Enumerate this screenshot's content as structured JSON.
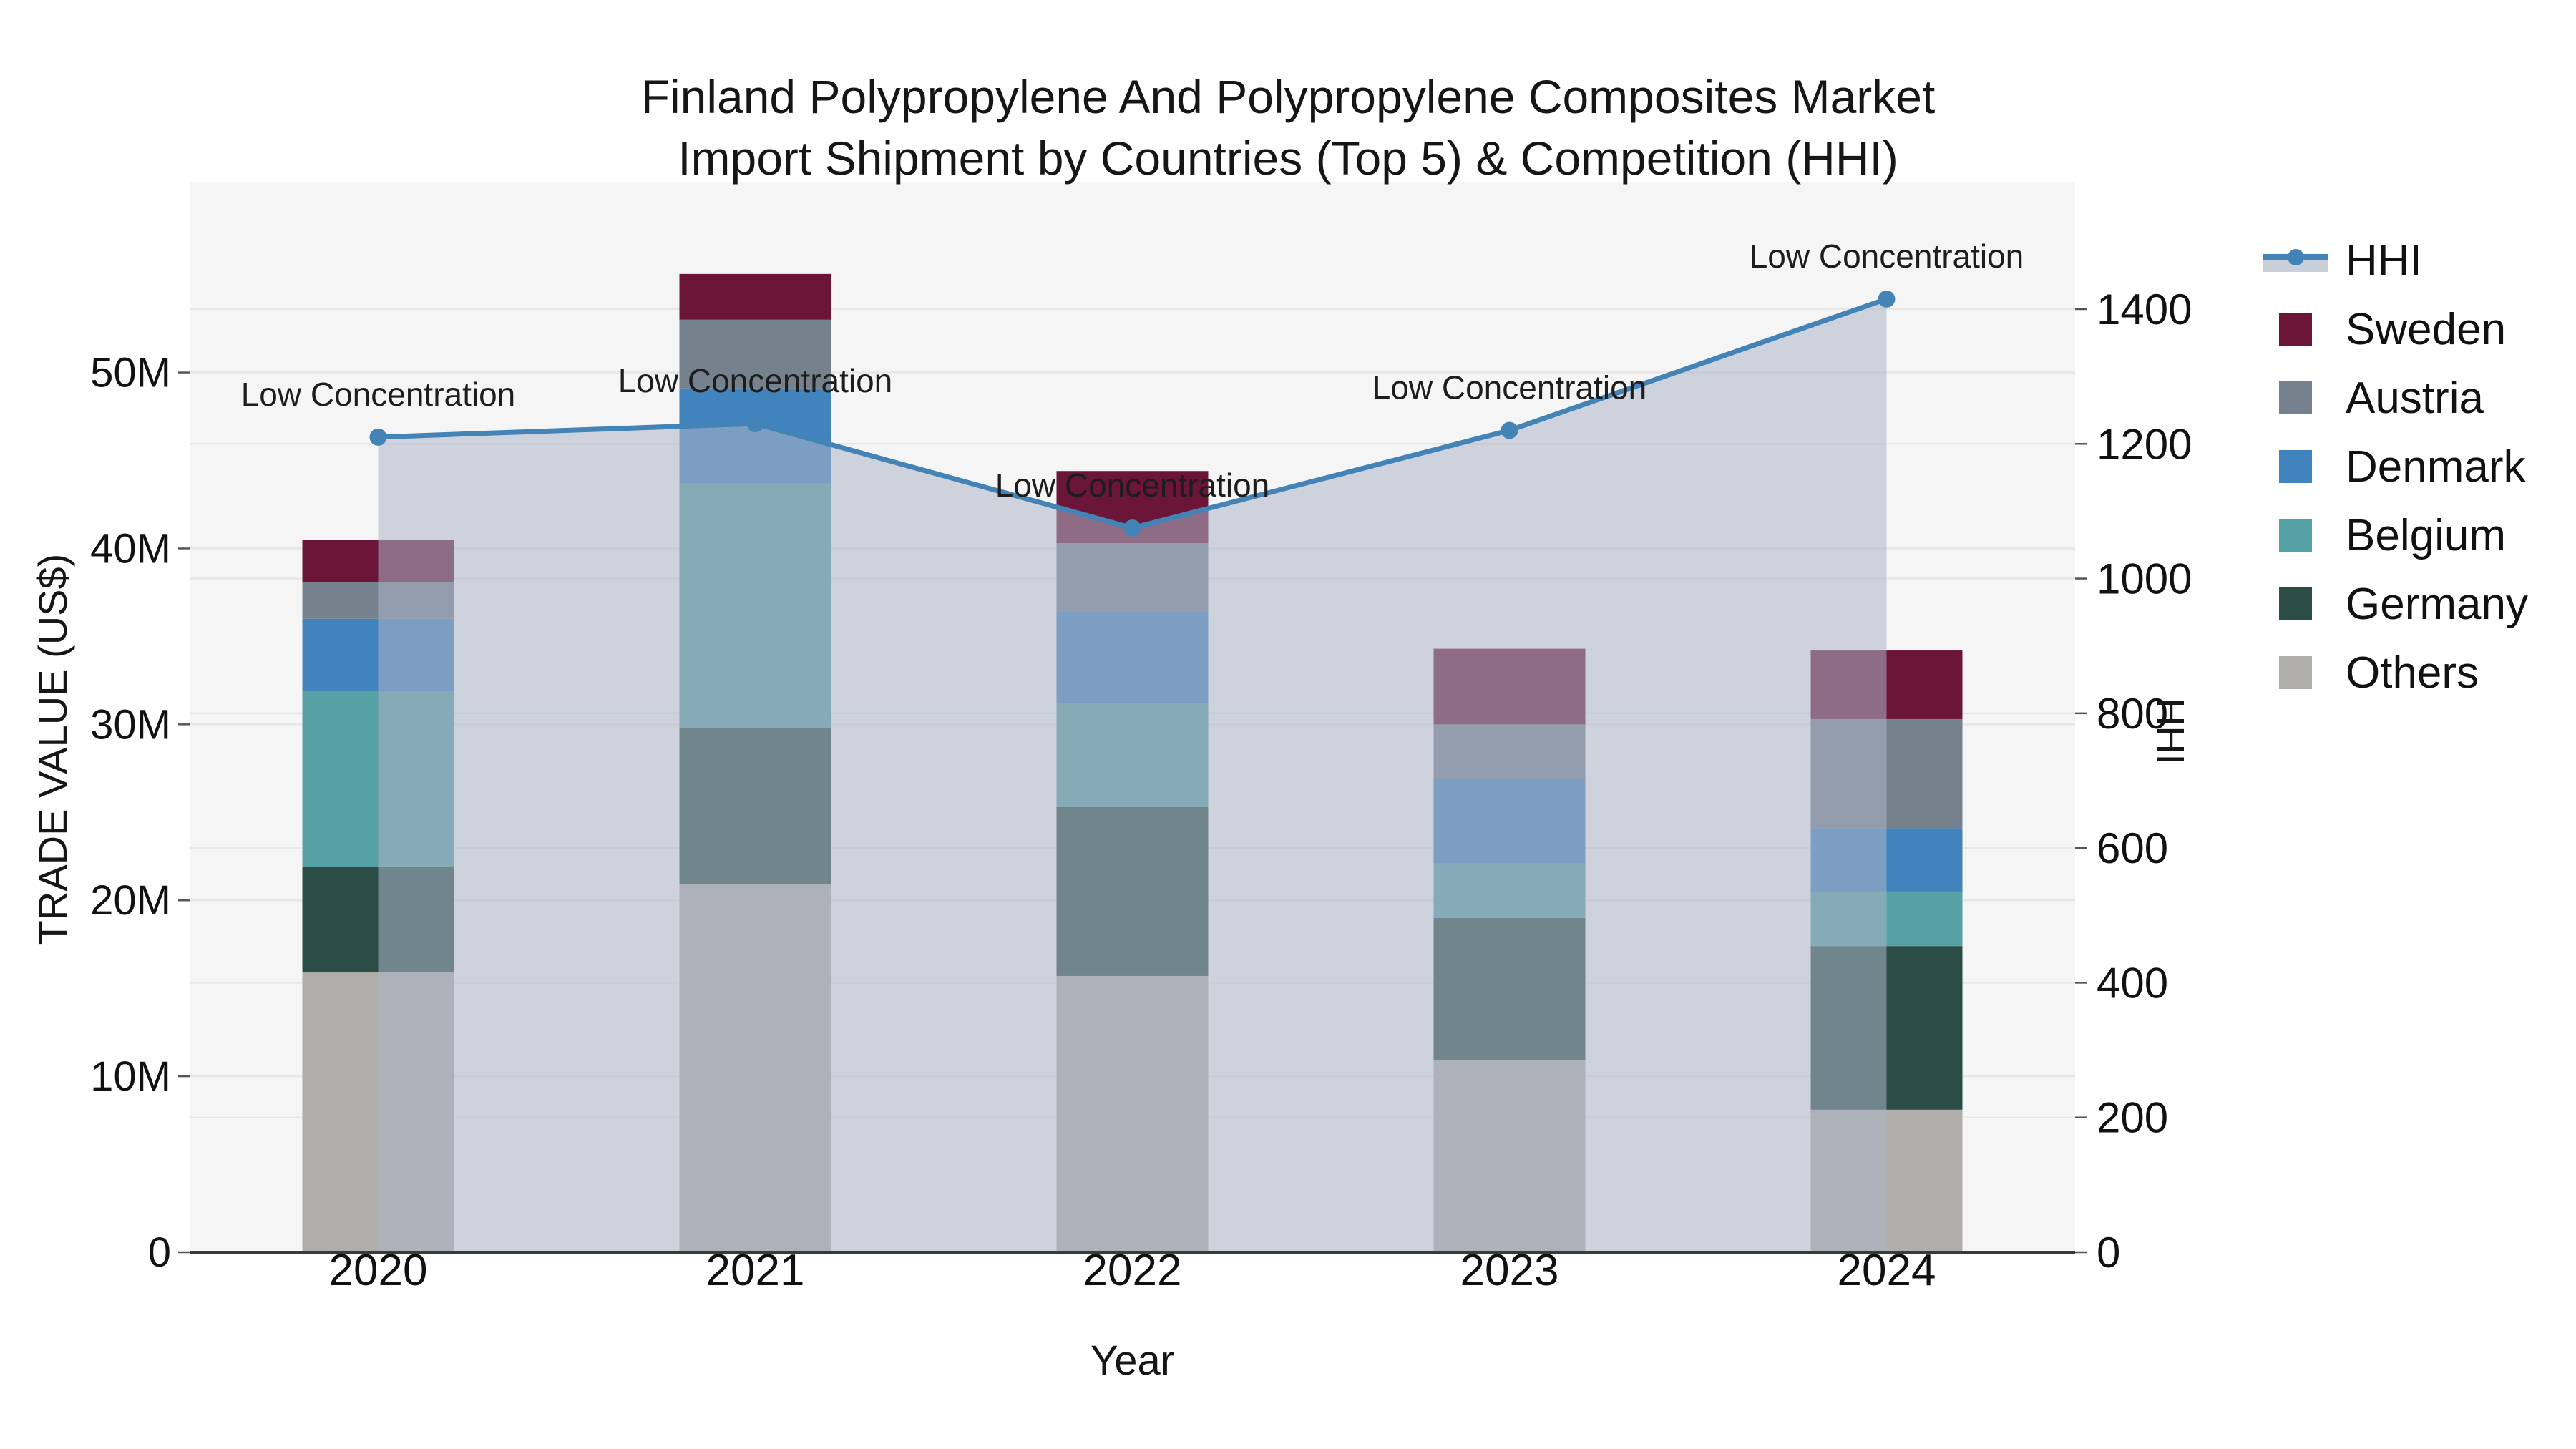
{
  "figure": {
    "title_line1": "Finland Polypropylene And Polypropylene Composites Market",
    "title_line2": "Import Shipment by Countries (Top 5) & Competition (HHI)"
  },
  "legend": {
    "items": [
      {
        "label": "HHI",
        "type": "line",
        "color": "#4483B6",
        "band_color": "#C9CFD9"
      },
      {
        "label": "Sweden",
        "type": "square",
        "color": "#6B1539"
      },
      {
        "label": "Austria",
        "type": "square",
        "color": "#75828E"
      },
      {
        "label": "Denmark",
        "type": "square",
        "color": "#4183BD"
      },
      {
        "label": "Belgium",
        "type": "square",
        "color": "#55A1A3"
      },
      {
        "label": "Germany",
        "type": "square",
        "color": "#2B4D46"
      },
      {
        "label": "Others",
        "type": "square",
        "color": "#AFAEAB"
      }
    ]
  },
  "chart_data": {
    "type": "bar",
    "subtype": "stacked-bars-with-line-overlay",
    "title": "Finland Polypropylene And Polypropylene Composites Market Import Shipment by Countries (Top 5) & Competition (HHI)",
    "categories": [
      "2020",
      "2021",
      "2022",
      "2023",
      "2024"
    ],
    "xlabel": "Year",
    "ylabel": "TRADE VALUE (US$)",
    "ylabel_right": "HHI",
    "bar_value_unit": "million US$",
    "series": [
      {
        "name": "Others",
        "color": "#AFAEAB",
        "values": [
          15.9,
          20.9,
          15.7,
          10.9,
          8.1
        ]
      },
      {
        "name": "Germany",
        "color": "#2B4D46",
        "values": [
          6.0,
          8.9,
          9.6,
          8.1,
          9.3
        ]
      },
      {
        "name": "Belgium",
        "color": "#55A1A3",
        "values": [
          10.0,
          13.9,
          5.9,
          3.1,
          3.1
        ]
      },
      {
        "name": "Denmark",
        "color": "#4183BD",
        "values": [
          4.1,
          5.4,
          5.2,
          4.8,
          3.6
        ]
      },
      {
        "name": "Austria",
        "color": "#75828E",
        "values": [
          2.1,
          3.9,
          3.9,
          3.1,
          6.2
        ]
      },
      {
        "name": "Sweden",
        "color": "#6B1539",
        "values": [
          2.4,
          2.6,
          4.1,
          4.3,
          3.9
        ]
      }
    ],
    "bar_totals": [
      40.5,
      55.6,
      44.4,
      34.3,
      34.2
    ],
    "line_series": {
      "name": "HHI",
      "axis": "right",
      "values": [
        1210,
        1230,
        1075,
        1220,
        1415
      ],
      "color": "#4483B6",
      "area_fill": "rgba(172,181,198,0.55)",
      "point_annotations": [
        "Low Concentration",
        "Low Concentration",
        "Low Concentration",
        "Low Concentration",
        "Low Concentration"
      ]
    },
    "yticks_left_labels": [
      "0",
      "10M",
      "20M",
      "30M",
      "40M",
      "50M"
    ],
    "yticks_left_values": [
      0,
      10,
      20,
      30,
      40,
      50
    ],
    "yticks_right": [
      0,
      200,
      400,
      600,
      800,
      1000,
      1200,
      1400
    ],
    "ylim_left": [
      0,
      60.8
    ],
    "ylim_right": [
      0,
      1588
    ],
    "grid": true,
    "legend_position": "right",
    "plot_bg": "#F5F5F5",
    "grid_color": "#E7E7E7",
    "axis_line_color": "#3A3A3A",
    "annotation_color": "#1D1D1D",
    "tick_label_color": "#111111"
  }
}
